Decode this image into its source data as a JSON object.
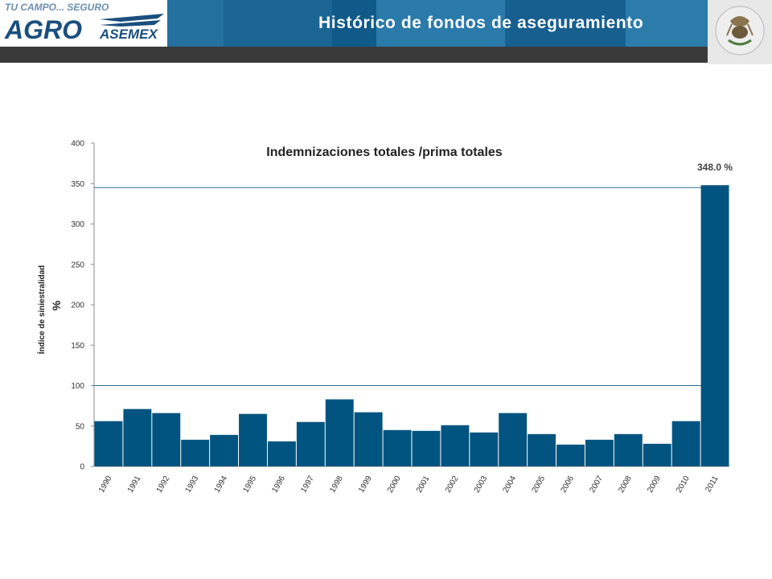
{
  "header": {
    "tagline": "TU CAMPO... SEGURO",
    "brand_main": "AGRO",
    "brand_sub": "ASEMEX",
    "title": "Histórico de fondos de aseguramiento",
    "seal_text": "ESTADOS UNIDOS MEXICANOS"
  },
  "colors": {
    "bar": "#00547f",
    "banner": "#1d6a9a",
    "darkbar": "#3a3a3a",
    "logo_blue": "#1a4f7d"
  },
  "chart_data": {
    "type": "bar",
    "title": "Indemnizaciones totales /prima totales",
    "ylabel": "Índice de siniestralidad",
    "ylabel_unit": "%",
    "xlabel": "",
    "ylim": [
      0,
      400
    ],
    "yticks": [
      "0",
      "50",
      "100",
      "150",
      "200",
      "250",
      "300",
      "350",
      "400"
    ],
    "reference_lines": [
      100,
      345
    ],
    "categories": [
      "1990",
      "1991",
      "1992",
      "1993",
      "1994",
      "1995",
      "1996",
      "1997",
      "1998",
      "1999",
      "2000",
      "2001",
      "2002",
      "2003",
      "2004",
      "2005",
      "2006",
      "2007",
      "2008",
      "2009",
      "2010",
      "2011"
    ],
    "values": [
      56,
      71,
      66,
      33,
      39,
      65,
      31,
      55,
      83,
      67,
      45,
      44,
      51,
      42,
      66,
      40,
      27,
      33,
      40,
      28,
      56,
      348
    ],
    "annotation": "348.0 %",
    "grid": false
  }
}
